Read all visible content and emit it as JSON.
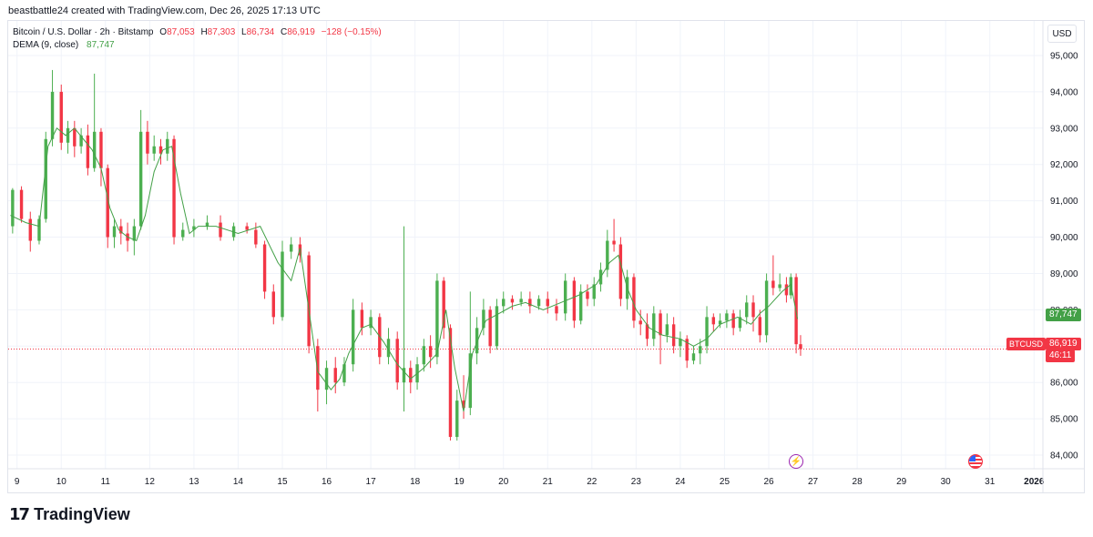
{
  "header": {
    "caption": "beastbattle24 created with TradingView.com, Dec 26, 2025 17:13 UTC"
  },
  "legend": {
    "symbol": "Bitcoin / U.S. Dollar · 2h · Bitstamp",
    "o_key": "O",
    "o_val": "87,053",
    "h_key": "H",
    "h_val": "87,303",
    "l_key": "L",
    "l_val": "86,734",
    "c_key": "C",
    "c_val": "86,919",
    "change": "−128 (−0.15%)",
    "dema_label": "DEMA (9, close)",
    "dema_val": "87,747"
  },
  "price_axis": {
    "currency": "USD",
    "dema_tag": "87,747",
    "last_price_tag": "86,919",
    "countdown": "46:11",
    "symbol_tag": "BTCUSD"
  },
  "footer": {
    "brand": "TradingView",
    "mark": "17"
  },
  "colors": {
    "up": "#4caf50",
    "down": "#f23645",
    "dema": "#43a047",
    "grid": "#f0f3fa",
    "text": "#131722"
  },
  "chart_data": {
    "type": "candlestick",
    "interval": "2h",
    "ylim": [
      83700,
      95400
    ],
    "y_ticks": [
      84000,
      85000,
      86000,
      87000,
      88000,
      89000,
      90000,
      91000,
      92000,
      93000,
      94000,
      95000
    ],
    "y_tick_labels": [
      "84,000",
      "85,000",
      "86,000",
      "87,000",
      "88,000",
      "89,000",
      "90,000",
      "91,000",
      "92,000",
      "93,000",
      "94,000",
      "95,000"
    ],
    "x_ticks": [
      "9",
      "10",
      "11",
      "12",
      "13",
      "14",
      "15",
      "16",
      "17",
      "18",
      "19",
      "20",
      "21",
      "22",
      "23",
      "24",
      "25",
      "26",
      "27",
      "28",
      "29",
      "30",
      "31",
      "2026"
    ],
    "x_range_days": [
      8.8,
      32.2
    ],
    "last_price": 86919,
    "series": [
      {
        "name": "DEMA (9, close)",
        "points": [
          [
            8.85,
            90600
          ],
          [
            9.2,
            90400
          ],
          [
            9.5,
            90300
          ],
          [
            9.7,
            92500
          ],
          [
            9.9,
            93000
          ],
          [
            10.1,
            92800
          ],
          [
            10.3,
            93000
          ],
          [
            10.5,
            92700
          ],
          [
            10.7,
            92400
          ],
          [
            10.9,
            91900
          ],
          [
            11.1,
            90800
          ],
          [
            11.3,
            90200
          ],
          [
            11.5,
            90000
          ],
          [
            11.7,
            89900
          ],
          [
            11.9,
            90600
          ],
          [
            12.1,
            91800
          ],
          [
            12.3,
            92400
          ],
          [
            12.5,
            92500
          ],
          [
            12.7,
            91200
          ],
          [
            12.9,
            90100
          ],
          [
            13.1,
            90300
          ],
          [
            13.5,
            90300
          ],
          [
            14.0,
            90100
          ],
          [
            14.5,
            90300
          ],
          [
            14.9,
            89300
          ],
          [
            15.2,
            88800
          ],
          [
            15.4,
            89700
          ],
          [
            15.6,
            88000
          ],
          [
            15.8,
            86300
          ],
          [
            16.1,
            85800
          ],
          [
            16.3,
            86100
          ],
          [
            16.5,
            86800
          ],
          [
            16.8,
            87500
          ],
          [
            17.0,
            87600
          ],
          [
            17.3,
            87100
          ],
          [
            17.6,
            86500
          ],
          [
            17.9,
            86100
          ],
          [
            18.2,
            86400
          ],
          [
            18.5,
            86800
          ],
          [
            18.7,
            88000
          ],
          [
            18.9,
            86400
          ],
          [
            19.1,
            85200
          ],
          [
            19.3,
            86800
          ],
          [
            19.6,
            87700
          ],
          [
            19.9,
            87900
          ],
          [
            20.2,
            88100
          ],
          [
            20.5,
            88200
          ],
          [
            20.9,
            88000
          ],
          [
            21.3,
            88200
          ],
          [
            21.7,
            88400
          ],
          [
            22.1,
            88700
          ],
          [
            22.4,
            89300
          ],
          [
            22.6,
            89500
          ],
          [
            22.8,
            88600
          ],
          [
            23.0,
            88000
          ],
          [
            23.3,
            87500
          ],
          [
            23.6,
            87300
          ],
          [
            24.0,
            87200
          ],
          [
            24.3,
            87000
          ],
          [
            24.6,
            87200
          ],
          [
            24.9,
            87600
          ],
          [
            25.3,
            87800
          ],
          [
            25.6,
            87600
          ],
          [
            25.8,
            87900
          ],
          [
            26.0,
            88100
          ],
          [
            26.3,
            88500
          ],
          [
            26.5,
            88700
          ],
          [
            26.65,
            87747
          ]
        ]
      }
    ],
    "candles": [
      [
        8.9,
        90300,
        91300,
        91350,
        90100
      ],
      [
        9.1,
        91300,
        90500,
        91400,
        90400
      ],
      [
        9.3,
        90500,
        89900,
        90700,
        89600
      ],
      [
        9.5,
        89900,
        90500,
        90600,
        89800
      ],
      [
        9.65,
        90500,
        92700,
        92900,
        90400
      ],
      [
        9.8,
        92700,
        94000,
        94600,
        92500
      ],
      [
        10.0,
        94000,
        92600,
        94200,
        92400
      ],
      [
        10.15,
        92600,
        93000,
        93200,
        92300
      ],
      [
        10.3,
        93000,
        92500,
        93200,
        92200
      ],
      [
        10.45,
        92500,
        92800,
        93000,
        92300
      ],
      [
        10.6,
        92800,
        91900,
        93100,
        91700
      ],
      [
        10.75,
        91900,
        92900,
        94500,
        91800
      ],
      [
        10.9,
        92900,
        91900,
        93000,
        91400
      ],
      [
        11.05,
        91900,
        90000,
        92000,
        89700
      ],
      [
        11.2,
        90000,
        90300,
        90500,
        89700
      ],
      [
        11.35,
        90300,
        90100,
        90500,
        89800
      ],
      [
        11.5,
        90100,
        89900,
        90400,
        89600
      ],
      [
        11.65,
        89900,
        90300,
        90500,
        89500
      ],
      [
        11.8,
        90300,
        92900,
        93500,
        90200
      ],
      [
        11.95,
        92900,
        92300,
        93200,
        92000
      ],
      [
        12.1,
        92300,
        92500,
        92800,
        92100
      ],
      [
        12.25,
        92500,
        92300,
        92700,
        92000
      ],
      [
        12.4,
        92300,
        92700,
        92900,
        92100
      ],
      [
        12.55,
        92700,
        90000,
        92800,
        89800
      ],
      [
        12.75,
        90000,
        90200,
        90400,
        89900
      ],
      [
        13.0,
        90200,
        90300,
        90500,
        90000
      ],
      [
        13.3,
        90300,
        90400,
        90600,
        90200
      ],
      [
        13.6,
        90400,
        90000,
        90600,
        89900
      ],
      [
        13.9,
        90000,
        90300,
        90400,
        89900
      ],
      [
        14.2,
        90300,
        90200,
        90400,
        90100
      ],
      [
        14.4,
        90200,
        89800,
        90400,
        89700
      ],
      [
        14.6,
        89800,
        88500,
        89900,
        88300
      ],
      [
        14.8,
        88500,
        87800,
        88700,
        87600
      ],
      [
        15.0,
        87800,
        89600,
        89900,
        87700
      ],
      [
        15.2,
        89600,
        89800,
        90000,
        89400
      ],
      [
        15.4,
        89800,
        89500,
        90000,
        89300
      ],
      [
        15.6,
        89500,
        87000,
        89600,
        86800
      ],
      [
        15.8,
        87000,
        85800,
        87200,
        85200
      ],
      [
        16.0,
        85800,
        86400,
        86600,
        85400
      ],
      [
        16.2,
        86400,
        86000,
        86700,
        85700
      ],
      [
        16.4,
        86000,
        86500,
        86700,
        85900
      ],
      [
        16.6,
        86500,
        88000,
        88300,
        86300
      ],
      [
        16.8,
        88000,
        87500,
        88200,
        87300
      ],
      [
        17.0,
        87500,
        87800,
        88000,
        87300
      ],
      [
        17.2,
        87800,
        86700,
        87900,
        86500
      ],
      [
        17.4,
        86700,
        87200,
        87500,
        86500
      ],
      [
        17.6,
        87200,
        86000,
        87400,
        85800
      ],
      [
        17.75,
        86000,
        86400,
        90300,
        85200
      ],
      [
        17.9,
        86400,
        86000,
        86600,
        85700
      ],
      [
        18.05,
        86000,
        86500,
        86700,
        85800
      ],
      [
        18.2,
        86500,
        87000,
        87200,
        86300
      ],
      [
        18.35,
        87000,
        86700,
        87300,
        86400
      ],
      [
        18.5,
        86700,
        88800,
        89000,
        86500
      ],
      [
        18.65,
        88800,
        87500,
        88900,
        87200
      ],
      [
        18.8,
        87500,
        84500,
        87600,
        84400
      ],
      [
        18.95,
        84500,
        85500,
        85800,
        84400
      ],
      [
        19.1,
        85500,
        85300,
        86200,
        85000
      ],
      [
        19.25,
        85300,
        86800,
        88500,
        85100
      ],
      [
        19.4,
        86800,
        87500,
        87800,
        86500
      ],
      [
        19.55,
        87500,
        88000,
        88300,
        87300
      ],
      [
        19.7,
        88000,
        87000,
        88100,
        86800
      ],
      [
        19.85,
        87000,
        88100,
        88300,
        86900
      ],
      [
        20.0,
        88100,
        88300,
        88500,
        87900
      ],
      [
        20.2,
        88300,
        88200,
        88400,
        88000
      ],
      [
        20.4,
        88200,
        88300,
        88500,
        88100
      ],
      [
        20.6,
        88300,
        88100,
        88500,
        87900
      ],
      [
        20.8,
        88100,
        88300,
        88400,
        88000
      ],
      [
        21.0,
        88300,
        88100,
        88500,
        87900
      ],
      [
        21.2,
        88100,
        87900,
        88300,
        87700
      ],
      [
        21.4,
        87900,
        88800,
        89000,
        87700
      ],
      [
        21.6,
        88800,
        87700,
        88900,
        87500
      ],
      [
        21.75,
        87700,
        88500,
        88700,
        87600
      ],
      [
        21.9,
        88500,
        88300,
        88700,
        88100
      ],
      [
        22.05,
        88300,
        88700,
        88900,
        88100
      ],
      [
        22.2,
        88700,
        89100,
        89300,
        88500
      ],
      [
        22.35,
        89100,
        89900,
        90200,
        88900
      ],
      [
        22.5,
        89900,
        89800,
        90500,
        89600
      ],
      [
        22.65,
        89800,
        88300,
        90000,
        88100
      ],
      [
        22.8,
        88300,
        88900,
        89100,
        88000
      ],
      [
        22.95,
        88900,
        87700,
        89000,
        87500
      ],
      [
        23.1,
        87700,
        87600,
        88000,
        87300
      ],
      [
        23.25,
        87600,
        87200,
        87900,
        87000
      ],
      [
        23.4,
        87200,
        87900,
        88100,
        87000
      ],
      [
        23.55,
        87900,
        87300,
        88000,
        86500
      ],
      [
        23.7,
        87300,
        87600,
        87900,
        87100
      ],
      [
        23.85,
        87600,
        87000,
        87800,
        86800
      ],
      [
        24.0,
        87000,
        87200,
        87400,
        86700
      ],
      [
        24.15,
        87200,
        86600,
        87300,
        86400
      ],
      [
        24.3,
        86600,
        86800,
        87000,
        86500
      ],
      [
        24.45,
        86800,
        87000,
        87200,
        86500
      ],
      [
        24.6,
        87000,
        87800,
        88100,
        86800
      ],
      [
        24.75,
        87800,
        87600,
        87900,
        87400
      ],
      [
        24.9,
        87600,
        87700,
        87900,
        87500
      ],
      [
        25.05,
        87700,
        87900,
        88000,
        87500
      ],
      [
        25.2,
        87900,
        87500,
        88000,
        87300
      ],
      [
        25.35,
        87500,
        87800,
        88000,
        87400
      ],
      [
        25.5,
        87800,
        88200,
        88400,
        87600
      ],
      [
        25.65,
        88200,
        87800,
        88400,
        87400
      ],
      [
        25.8,
        87800,
        87300,
        88000,
        87100
      ],
      [
        25.95,
        87300,
        88800,
        89000,
        87100
      ],
      [
        26.1,
        88800,
        88600,
        89500,
        88400
      ],
      [
        26.25,
        88600,
        88700,
        89000,
        88500
      ],
      [
        26.4,
        88700,
        88400,
        88900,
        88200
      ],
      [
        26.5,
        88400,
        88900,
        89000,
        88300
      ],
      [
        26.62,
        88900,
        87053,
        89000,
        86800
      ],
      [
        26.72,
        87053,
        86919,
        87303,
        86734
      ]
    ]
  }
}
